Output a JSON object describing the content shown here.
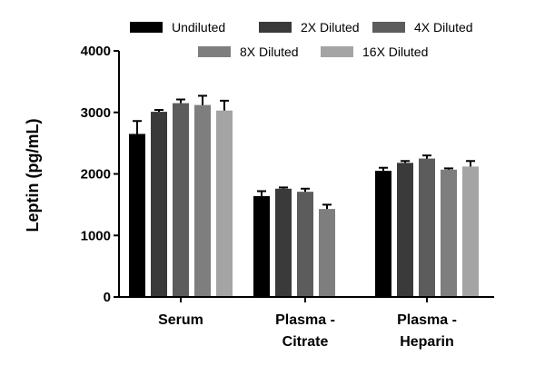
{
  "chart_data": {
    "type": "bar",
    "title": "",
    "xlabel": "",
    "ylabel": "Leptin (pg/mL)",
    "ylim": [
      0,
      4000
    ],
    "yticks": [
      0,
      1000,
      2000,
      3000,
      4000
    ],
    "grid": false,
    "legend_position": "top",
    "categories": [
      {
        "line1": "Serum",
        "line2": ""
      },
      {
        "line1": "Plasma -",
        "line2": "Citrate"
      },
      {
        "line1": "Plasma -",
        "line2": "Heparin"
      }
    ],
    "series": [
      {
        "name": "Undiluted",
        "color": "#000000",
        "values": [
          2650,
          1640,
          2050
        ],
        "errors": [
          210,
          80,
          50
        ]
      },
      {
        "name": "2X Diluted",
        "color": "#3a3a3a",
        "values": [
          3010,
          1760,
          2180
        ],
        "errors": [
          30,
          20,
          30
        ]
      },
      {
        "name": "4X Diluted",
        "color": "#5c5c5c",
        "values": [
          3150,
          1710,
          2250
        ],
        "errors": [
          60,
          50,
          50
        ]
      },
      {
        "name": "8X Diluted",
        "color": "#7e7e7e",
        "values": [
          3120,
          1430,
          2070
        ],
        "errors": [
          150,
          70,
          20
        ]
      },
      {
        "name": "16X Diluted",
        "color": "#a4a4a4",
        "values": [
          3030,
          null,
          2120
        ],
        "errors": [
          160,
          null,
          90
        ]
      }
    ]
  }
}
